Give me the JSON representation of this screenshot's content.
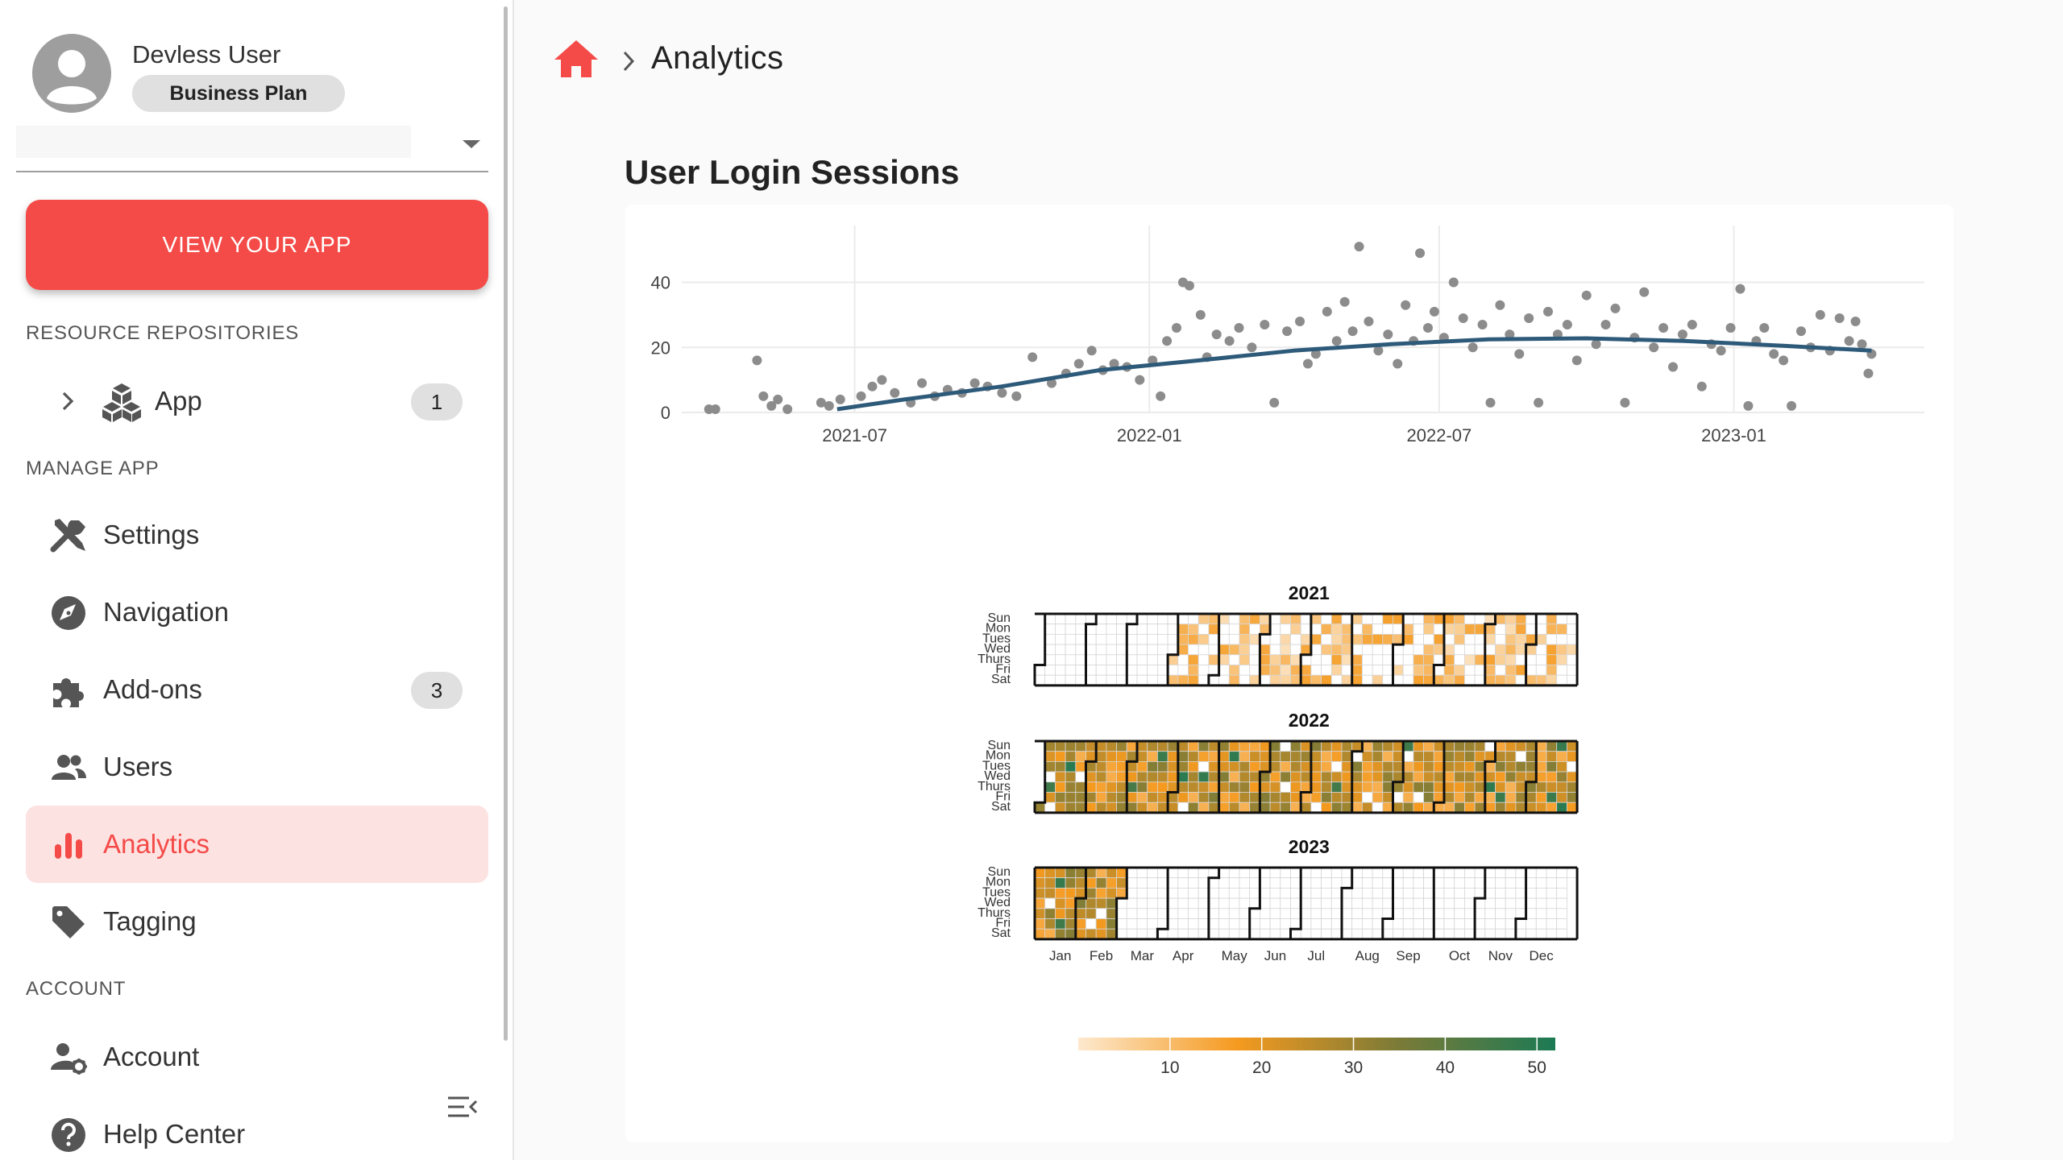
{
  "user": {
    "name": "Devless User",
    "plan": "Business Plan"
  },
  "app_select": {
    "value": ""
  },
  "view_app_button": "VIEW YOUR APP",
  "sections": {
    "resources": "RESOURCE REPOSITORIES",
    "manage": "MANAGE APP",
    "account": "ACCOUNT"
  },
  "nav": {
    "app": {
      "label": "App",
      "count": "1",
      "icon": "cubes-icon"
    },
    "settings": {
      "label": "Settings",
      "icon": "tools-icon"
    },
    "navigation": {
      "label": "Navigation",
      "icon": "compass-icon"
    },
    "addons": {
      "label": "Add-ons",
      "count": "3",
      "icon": "puzzle-icon"
    },
    "users": {
      "label": "Users",
      "icon": "users-icon"
    },
    "analytics": {
      "label": "Analytics",
      "icon": "bar-chart-icon",
      "active": true
    },
    "tagging": {
      "label": "Tagging",
      "icon": "tag-icon"
    },
    "account": {
      "label": "Account",
      "icon": "user-cog-icon"
    },
    "help": {
      "label": "Help Center",
      "icon": "help-circle-icon"
    }
  },
  "breadcrumb": {
    "home_icon": "home-icon",
    "current": "Analytics"
  },
  "page_title": "User Login Sessions",
  "colors": {
    "accent": "#f44b48",
    "active_bg": "#fde2e2",
    "trend": "#2e5a7a",
    "points": "#8c8c8c"
  },
  "chart_data": [
    {
      "type": "scatter",
      "title": "",
      "xlabel": "",
      "ylabel": "",
      "x_ticks": [
        "2021-07",
        "2022-01",
        "2022-07",
        "2023-01"
      ],
      "y_ticks": [
        0,
        20,
        40
      ],
      "xlim": [
        "2021-03-15",
        "2023-04-30"
      ],
      "ylim": [
        0,
        55
      ],
      "grid": true,
      "series": [
        {
          "type": "scatter",
          "points": [
            [
              "2021-04-01",
              1
            ],
            [
              "2021-04-05",
              1
            ],
            [
              "2021-05-01",
              16
            ],
            [
              "2021-05-05",
              5
            ],
            [
              "2021-05-10",
              2
            ],
            [
              "2021-05-14",
              4
            ],
            [
              "2021-05-20",
              1
            ],
            [
              "2021-06-10",
              3
            ],
            [
              "2021-06-15",
              2
            ],
            [
              "2021-06-22",
              4
            ],
            [
              "2021-07-05",
              5
            ],
            [
              "2021-07-12",
              8
            ],
            [
              "2021-07-18",
              10
            ],
            [
              "2021-07-26",
              6
            ],
            [
              "2021-08-05",
              3
            ],
            [
              "2021-08-12",
              9
            ],
            [
              "2021-08-20",
              5
            ],
            [
              "2021-08-28",
              7
            ],
            [
              "2021-09-06",
              6
            ],
            [
              "2021-09-14",
              9
            ],
            [
              "2021-09-22",
              8
            ],
            [
              "2021-10-01",
              6
            ],
            [
              "2021-10-10",
              5
            ],
            [
              "2021-10-20",
              17
            ],
            [
              "2021-11-01",
              9
            ],
            [
              "2021-11-10",
              12
            ],
            [
              "2021-11-18",
              15
            ],
            [
              "2021-11-26",
              19
            ],
            [
              "2021-12-03",
              13
            ],
            [
              "2021-12-10",
              15
            ],
            [
              "2021-12-18",
              14
            ],
            [
              "2021-12-26",
              10
            ],
            [
              "2022-01-03",
              16
            ],
            [
              "2022-01-08",
              5
            ],
            [
              "2022-01-12",
              22
            ],
            [
              "2022-01-18",
              26
            ],
            [
              "2022-01-22",
              40
            ],
            [
              "2022-01-26",
              39
            ],
            [
              "2022-02-02",
              30
            ],
            [
              "2022-02-06",
              17
            ],
            [
              "2022-02-12",
              24
            ],
            [
              "2022-02-20",
              22
            ],
            [
              "2022-02-26",
              26
            ],
            [
              "2022-03-06",
              20
            ],
            [
              "2022-03-14",
              27
            ],
            [
              "2022-03-20",
              3
            ],
            [
              "2022-03-28",
              25
            ],
            [
              "2022-04-05",
              28
            ],
            [
              "2022-04-10",
              15
            ],
            [
              "2022-04-15",
              18
            ],
            [
              "2022-04-22",
              31
            ],
            [
              "2022-04-28",
              22
            ],
            [
              "2022-05-03",
              34
            ],
            [
              "2022-05-08",
              25
            ],
            [
              "2022-05-12",
              51
            ],
            [
              "2022-05-18",
              28
            ],
            [
              "2022-05-24",
              19
            ],
            [
              "2022-05-30",
              24
            ],
            [
              "2022-06-05",
              15
            ],
            [
              "2022-06-10",
              33
            ],
            [
              "2022-06-15",
              22
            ],
            [
              "2022-06-19",
              49
            ],
            [
              "2022-06-24",
              26
            ],
            [
              "2022-06-28",
              31
            ],
            [
              "2022-07-04",
              23
            ],
            [
              "2022-07-10",
              40
            ],
            [
              "2022-07-16",
              29
            ],
            [
              "2022-07-22",
              20
            ],
            [
              "2022-07-28",
              27
            ],
            [
              "2022-08-02",
              3
            ],
            [
              "2022-08-08",
              33
            ],
            [
              "2022-08-14",
              24
            ],
            [
              "2022-08-20",
              18
            ],
            [
              "2022-08-26",
              29
            ],
            [
              "2022-09-01",
              3
            ],
            [
              "2022-09-07",
              31
            ],
            [
              "2022-09-13",
              24
            ],
            [
              "2022-09-19",
              27
            ],
            [
              "2022-09-25",
              16
            ],
            [
              "2022-10-01",
              36
            ],
            [
              "2022-10-07",
              21
            ],
            [
              "2022-10-13",
              27
            ],
            [
              "2022-10-19",
              32
            ],
            [
              "2022-10-25",
              3
            ],
            [
              "2022-10-31",
              23
            ],
            [
              "2022-11-06",
              37
            ],
            [
              "2022-11-12",
              20
            ],
            [
              "2022-11-18",
              26
            ],
            [
              "2022-11-24",
              14
            ],
            [
              "2022-11-30",
              24
            ],
            [
              "2022-12-06",
              27
            ],
            [
              "2022-12-12",
              8
            ],
            [
              "2022-12-18",
              21
            ],
            [
              "2022-12-24",
              19
            ],
            [
              "2022-12-30",
              26
            ],
            [
              "2023-01-05",
              38
            ],
            [
              "2023-01-10",
              2
            ],
            [
              "2023-01-15",
              22
            ],
            [
              "2023-01-20",
              26
            ],
            [
              "2023-01-26",
              18
            ],
            [
              "2023-02-01",
              16
            ],
            [
              "2023-02-06",
              2
            ],
            [
              "2023-02-12",
              25
            ],
            [
              "2023-02-18",
              20
            ],
            [
              "2023-02-24",
              30
            ],
            [
              "2023-03-02",
              19
            ],
            [
              "2023-03-08",
              29
            ],
            [
              "2023-03-14",
              22
            ],
            [
              "2023-03-18",
              28
            ],
            [
              "2023-03-22",
              21
            ],
            [
              "2023-03-26",
              12
            ],
            [
              "2023-03-28",
              18
            ]
          ]
        },
        {
          "type": "trend",
          "points": [
            [
              "2021-06-20",
              1
            ],
            [
              "2021-08-01",
              4
            ],
            [
              "2021-10-01",
              8
            ],
            [
              "2021-12-01",
              13
            ],
            [
              "2022-02-01",
              16
            ],
            [
              "2022-04-01",
              19
            ],
            [
              "2022-06-01",
              21
            ],
            [
              "2022-08-01",
              22.5
            ],
            [
              "2022-10-01",
              22.8
            ],
            [
              "2022-12-01",
              22
            ],
            [
              "2023-02-01",
              20.5
            ],
            [
              "2023-03-28",
              19
            ]
          ]
        }
      ]
    },
    {
      "type": "heatmap",
      "title": "",
      "years": [
        "2021",
        "2022",
        "2023"
      ],
      "weekday_labels": [
        "Sun",
        "Mon",
        "Tues",
        "Wed",
        "Thurs",
        "Fri",
        "Sat"
      ],
      "month_labels": [
        "Jan",
        "Feb",
        "Mar",
        "Apr",
        "May",
        "Jun",
        "Jul",
        "Aug",
        "Sep",
        "Oct",
        "Nov",
        "Dec"
      ],
      "legend_ticks": [
        10,
        20,
        30,
        40,
        50
      ],
      "color_range": [
        0,
        52
      ],
      "color_stops": [
        "#fde9cf",
        "#f59a1f",
        "#7c7b37",
        "#1c7a55"
      ],
      "data_extent": [
        {
          "year": "2021",
          "from": "2021-03-31",
          "to": "2021-12-31",
          "density": "sparse"
        },
        {
          "year": "2022",
          "from": "2022-01-01",
          "to": "2022-12-31",
          "density": "dense"
        },
        {
          "year": "2023",
          "from": "2023-01-01",
          "to": "2023-02-28",
          "density": "dense"
        }
      ]
    }
  ]
}
